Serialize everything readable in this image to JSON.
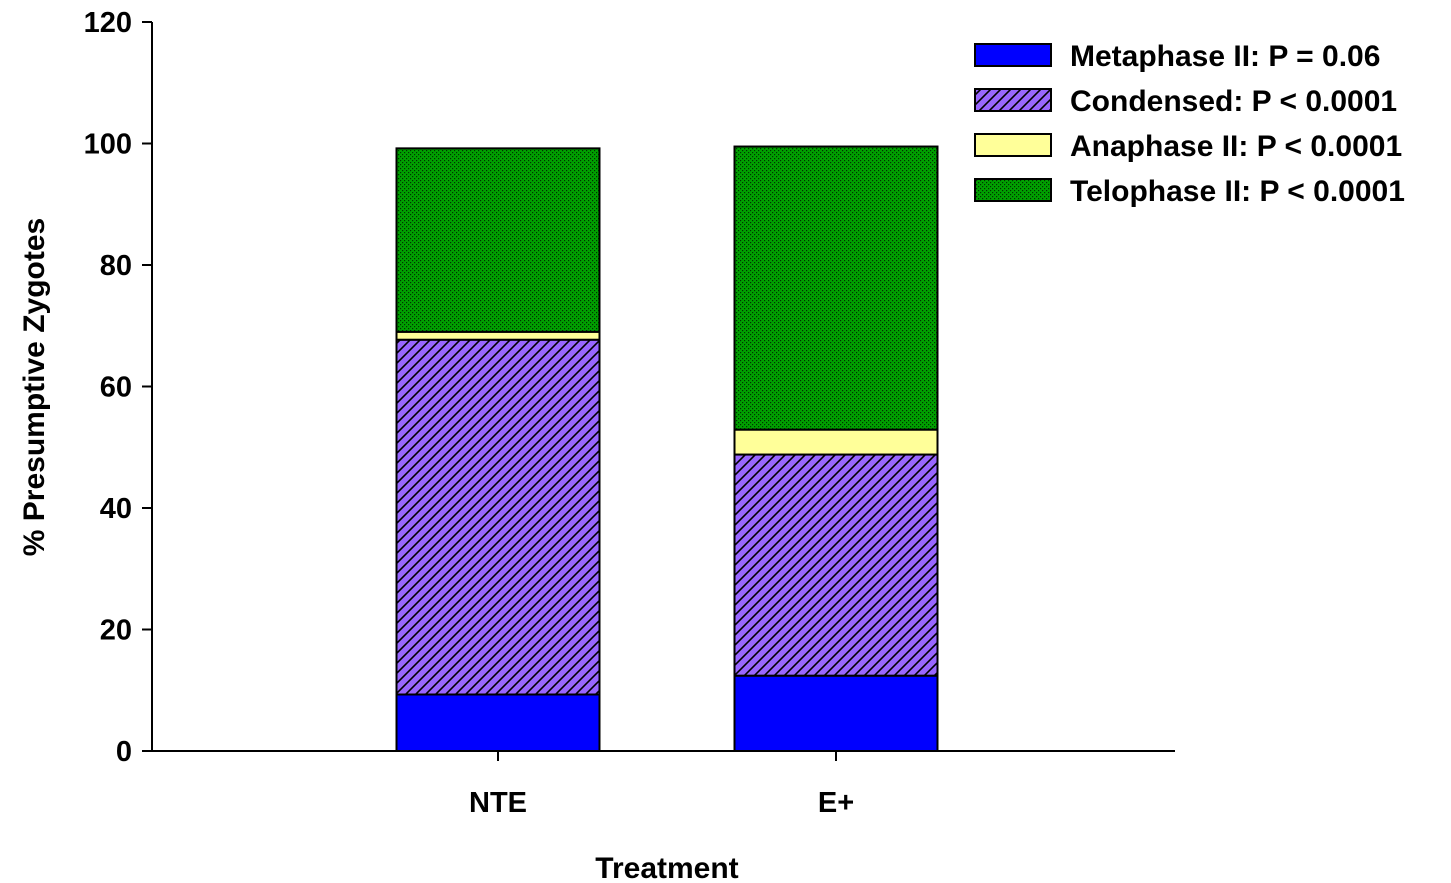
{
  "chart_data": {
    "type": "bar",
    "stacked": true,
    "xlabel": "Treatment",
    "ylabel": "% Presumptive Zygotes",
    "ylim": [
      0,
      120
    ],
    "yticks": [
      "0",
      "20",
      "40",
      "60",
      "80",
      "100",
      "120"
    ],
    "categories": [
      "NTE",
      "E+"
    ],
    "legend_position": "top-right",
    "series": [
      {
        "name": "Metaphase II: P = 0.06",
        "values": [
          9.3,
          12.4
        ],
        "color": "#0000ff",
        "pattern": "solid"
      },
      {
        "name": "Condensed: P < 0.0001",
        "values": [
          58.4,
          36.4
        ],
        "color": "#9966ff",
        "pattern": "diagonal-hatch"
      },
      {
        "name": "Anaphase II: P < 0.0001",
        "values": [
          1.3,
          4.1
        ],
        "color": "#ffff99",
        "pattern": "solid"
      },
      {
        "name": "Telophase II: P < 0.0001",
        "values": [
          30.2,
          46.6
        ],
        "color": "#009900",
        "pattern": "crosshatch-dots"
      }
    ]
  }
}
